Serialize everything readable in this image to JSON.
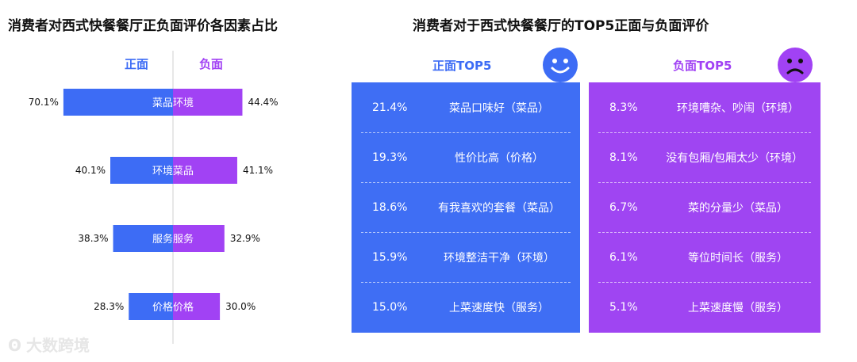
{
  "left": {
    "title": "消费者对西式快餐餐厅正负面评价各因素占比"
  },
  "right": {
    "title": "消费者对于西式快餐餐厅的TOP5正面与负面评价",
    "positive_header": "正面TOP5",
    "negative_header": "负面TOP5",
    "positive_rows": [
      {
        "pct": "21.4%",
        "text": "菜品口味好（菜品）"
      },
      {
        "pct": "19.3%",
        "text": "性价比高（价格）"
      },
      {
        "pct": "18.6%",
        "text": "有我喜欢的套餐（菜品）"
      },
      {
        "pct": "15.9%",
        "text": "环境整洁干净（环境）"
      },
      {
        "pct": "15.0%",
        "text": "上菜速度快（服务）"
      }
    ],
    "negative_rows": [
      {
        "pct": "8.3%",
        "text": "环境嘈杂、吵闹（环境）"
      },
      {
        "pct": "8.1%",
        "text": "没有包厢/包厢太少（环境）"
      },
      {
        "pct": "6.7%",
        "text": "菜的分量少（菜品）"
      },
      {
        "pct": "6.1%",
        "text": "等位时间长（服务）"
      },
      {
        "pct": "5.1%",
        "text": "上菜速度慢（服务）"
      }
    ],
    "positive_color": "#3f6ef4",
    "negative_color": "#9f45f2",
    "positive_icon": "smiley-face-icon",
    "negative_icon": "sad-face-icon"
  },
  "watermark": {
    "text": "大数跨境"
  },
  "chart_data": {
    "type": "bar",
    "title": "消费者对西式快餐餐厅正负面评价各因素占比",
    "orientation": "horizontal-diverging",
    "series": [
      {
        "name": "正面",
        "color": "#3d6cf5",
        "categories": [
          "菜品",
          "环境",
          "服务",
          "价格"
        ],
        "values": [
          70.1,
          40.1,
          38.3,
          28.3
        ],
        "labels": [
          "70.1%",
          "40.1%",
          "38.3%",
          "28.3%"
        ]
      },
      {
        "name": "负面",
        "color": "#a142f4",
        "categories": [
          "环境",
          "菜品",
          "服务",
          "价格"
        ],
        "values": [
          44.4,
          41.1,
          32.9,
          30.0
        ],
        "labels": [
          "44.4%",
          "41.1%",
          "32.9%",
          "30.0%"
        ]
      }
    ],
    "legend": [
      "正面",
      "负面"
    ],
    "legend_position": "top"
  }
}
